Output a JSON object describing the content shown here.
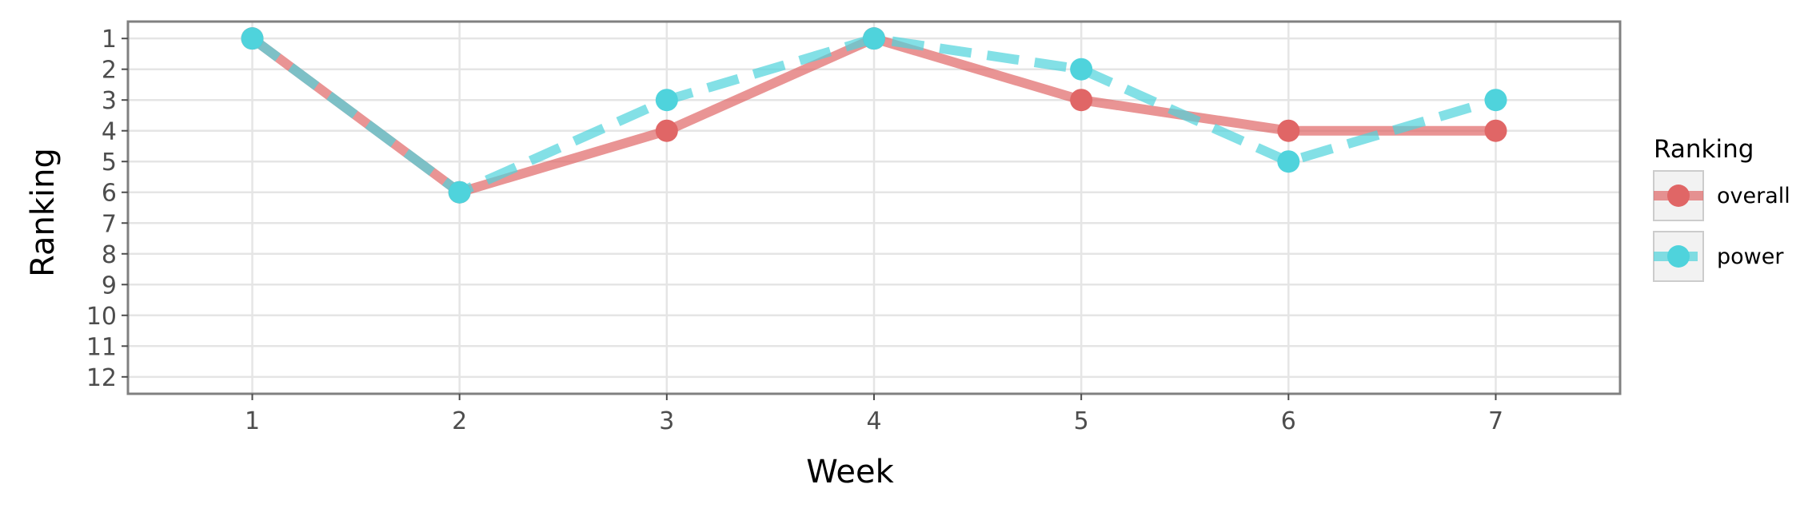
{
  "chart_data": {
    "type": "line",
    "title": "",
    "xlabel": "Week",
    "ylabel": "Ranking",
    "x": [
      1,
      2,
      3,
      4,
      5,
      6,
      7
    ],
    "xlim": [
      0.4,
      7.6
    ],
    "ylim": [
      12.55,
      0.45
    ],
    "y_reversed": true,
    "x_ticks": [
      "1",
      "2",
      "3",
      "4",
      "5",
      "6",
      "7"
    ],
    "y_ticks": [
      "1",
      "2",
      "3",
      "4",
      "5",
      "6",
      "7",
      "8",
      "9",
      "10",
      "11",
      "12"
    ],
    "grid": true,
    "legend": {
      "title": "Ranking",
      "position": "right"
    },
    "series": [
      {
        "name": "overall",
        "values": [
          1,
          6,
          4,
          1,
          3,
          4,
          4
        ],
        "color": "#e06666",
        "line_style": "solid"
      },
      {
        "name": "power",
        "values": [
          1,
          6,
          3,
          1,
          2,
          5,
          3
        ],
        "color": "#4fd3dc",
        "line_style": "dashed"
      }
    ]
  }
}
